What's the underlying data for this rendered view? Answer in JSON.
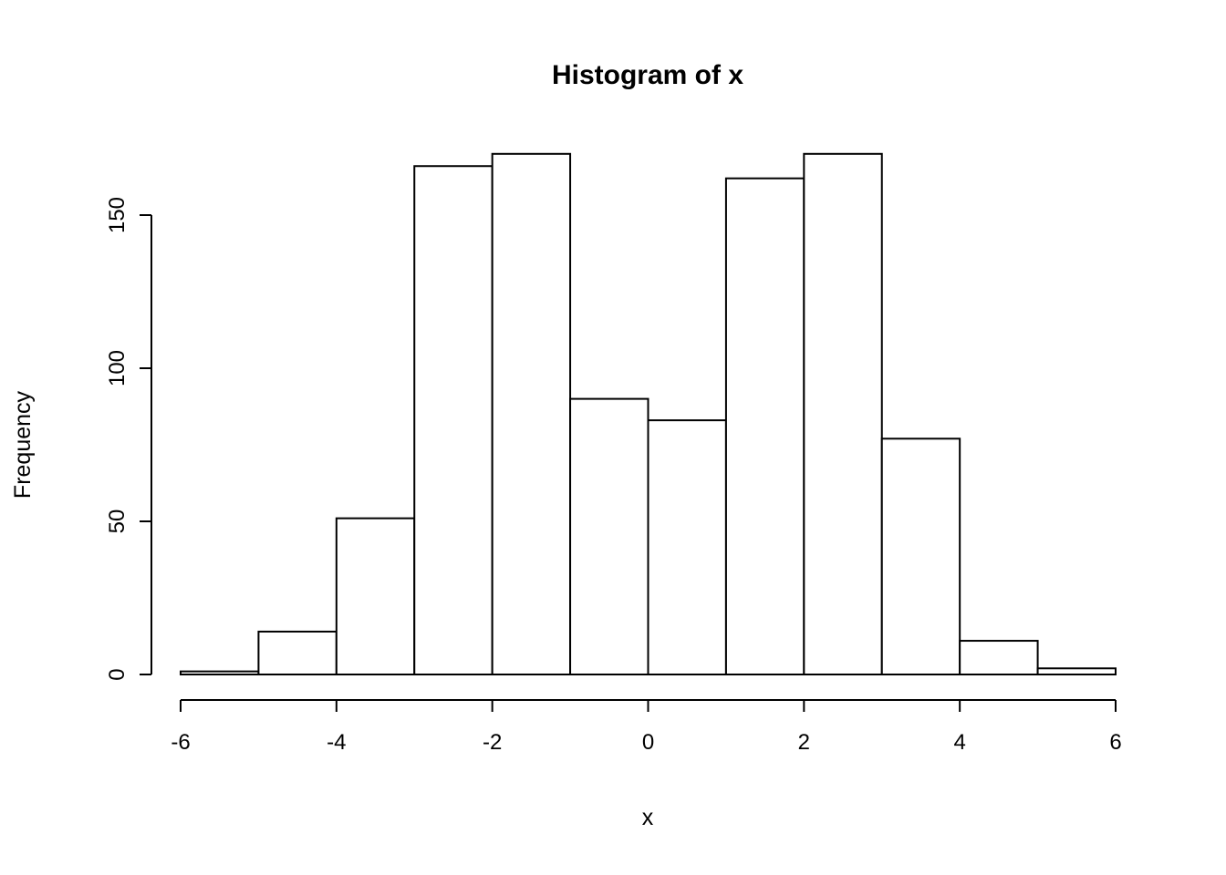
{
  "chart_data": {
    "type": "bar",
    "chart_kind": "histogram",
    "title": "Histogram of x",
    "xlabel": "x",
    "ylabel": "Frequency",
    "breaks": [
      -6,
      -5,
      -4,
      -3,
      -2,
      -1,
      0,
      1,
      2,
      3,
      4,
      5,
      6
    ],
    "counts": [
      1,
      14,
      51,
      166,
      170,
      90,
      83,
      162,
      170,
      77,
      11,
      2
    ],
    "x_ticks": [
      "-6",
      "-4",
      "-2",
      "0",
      "2",
      "4",
      "6"
    ],
    "x_tick_values": [
      -6,
      -4,
      -2,
      0,
      2,
      4,
      6
    ],
    "y_ticks": [
      "0",
      "50",
      "100",
      "150"
    ],
    "y_tick_values": [
      0,
      50,
      100,
      150
    ],
    "xlim": [
      -6,
      6
    ],
    "ylim": [
      0,
      170
    ],
    "bar_fill": "#ffffff",
    "bar_stroke": "#000000",
    "axis_color": "#000000",
    "grid": false,
    "legend_position": "none"
  }
}
